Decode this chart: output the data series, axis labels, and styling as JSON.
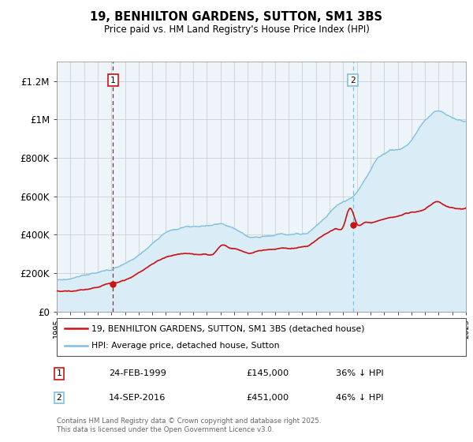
{
  "title": "19, BENHILTON GARDENS, SUTTON, SM1 3BS",
  "subtitle": "Price paid vs. HM Land Registry's House Price Index (HPI)",
  "ylim": [
    0,
    1300000
  ],
  "yticks": [
    0,
    200000,
    400000,
    600000,
    800000,
    1000000,
    1200000
  ],
  "ytick_labels": [
    "£0",
    "£200K",
    "£400K",
    "£600K",
    "£800K",
    "£1M",
    "£1.2M"
  ],
  "hpi_color": "#7fbfdf",
  "hpi_fill_color": "#daedf7",
  "price_color": "#cc1111",
  "vline1_color": "#cc1111",
  "vline2_color": "#7fbfdf",
  "purchase1_year": 1999.13,
  "purchase1_price": 145000,
  "purchase2_year": 2016.71,
  "purchase2_price": 451000,
  "legend_label_red": "19, BENHILTON GARDENS, SUTTON, SM1 3BS (detached house)",
  "legend_label_blue": "HPI: Average price, detached house, Sutton",
  "annotation1_date": "24-FEB-1999",
  "annotation1_price": "£145,000",
  "annotation1_hpi": "36% ↓ HPI",
  "annotation2_date": "14-SEP-2016",
  "annotation2_price": "£451,000",
  "annotation2_hpi": "46% ↓ HPI",
  "copyright_text": "Contains HM Land Registry data © Crown copyright and database right 2025.\nThis data is licensed under the Open Government Licence v3.0.",
  "background_color": "#ffffff",
  "plot_bg_color": "#edf5fb",
  "hpi_years": [
    1995,
    1995.5,
    1996,
    1996.5,
    1997,
    1997.5,
    1998,
    1998.5,
    1999,
    1999.5,
    2000,
    2000.5,
    2001,
    2001.5,
    2002,
    2002.5,
    2003,
    2003.5,
    2004,
    2004.5,
    2005,
    2005.5,
    2006,
    2006.5,
    2007,
    2007.5,
    2008,
    2008.5,
    2009,
    2009.5,
    2010,
    2010.5,
    2011,
    2011.5,
    2012,
    2012.5,
    2013,
    2013.5,
    2014,
    2014.5,
    2015,
    2015.5,
    2016,
    2016.5,
    2017,
    2017.5,
    2018,
    2018.5,
    2019,
    2019.5,
    2020,
    2020.5,
    2021,
    2021.5,
    2022,
    2022.5,
    2023,
    2023.5,
    2024,
    2024.5,
    2025
  ],
  "hpi_values": [
    163000,
    167000,
    172000,
    178000,
    185000,
    192000,
    198000,
    208000,
    218000,
    228000,
    245000,
    265000,
    290000,
    320000,
    355000,
    390000,
    415000,
    430000,
    440000,
    445000,
    448000,
    450000,
    452000,
    455000,
    458000,
    450000,
    435000,
    415000,
    395000,
    390000,
    395000,
    400000,
    405000,
    408000,
    405000,
    408000,
    415000,
    430000,
    460000,
    490000,
    530000,
    565000,
    590000,
    610000,
    640000,
    700000,
    760000,
    820000,
    840000,
    855000,
    855000,
    870000,
    900000,
    950000,
    1000000,
    1040000,
    1060000,
    1040000,
    1020000,
    1000000,
    990000
  ],
  "price_years": [
    1995,
    1995.5,
    1996,
    1996.5,
    1997,
    1997.5,
    1998,
    1998.5,
    1999,
    1999.5,
    2000,
    2000.5,
    2001,
    2001.5,
    2002,
    2002.5,
    2003,
    2003.5,
    2004,
    2004.5,
    2005,
    2005.5,
    2006,
    2006.5,
    2007,
    2007.5,
    2008,
    2008.5,
    2009,
    2009.5,
    2010,
    2010.5,
    2011,
    2011.5,
    2012,
    2012.5,
    2013,
    2013.5,
    2014,
    2014.5,
    2015,
    2015.5,
    2016,
    2016.5,
    2017,
    2017.5,
    2018,
    2018.5,
    2019,
    2019.5,
    2020,
    2020.5,
    2021,
    2021.5,
    2022,
    2022.5,
    2023,
    2023.5,
    2024,
    2024.5,
    2025
  ],
  "price_values": [
    108000,
    108000,
    110000,
    112000,
    115000,
    120000,
    128000,
    136000,
    145000,
    152000,
    165000,
    183000,
    205000,
    225000,
    248000,
    268000,
    283000,
    292000,
    298000,
    302000,
    300000,
    298000,
    298000,
    300000,
    345000,
    340000,
    330000,
    320000,
    305000,
    310000,
    318000,
    323000,
    328000,
    332000,
    330000,
    332000,
    338000,
    348000,
    372000,
    395000,
    415000,
    430000,
    445000,
    540000,
    460000,
    465000,
    468000,
    475000,
    482000,
    490000,
    498000,
    510000,
    520000,
    525000,
    540000,
    565000,
    575000,
    555000,
    545000,
    535000,
    540000
  ]
}
